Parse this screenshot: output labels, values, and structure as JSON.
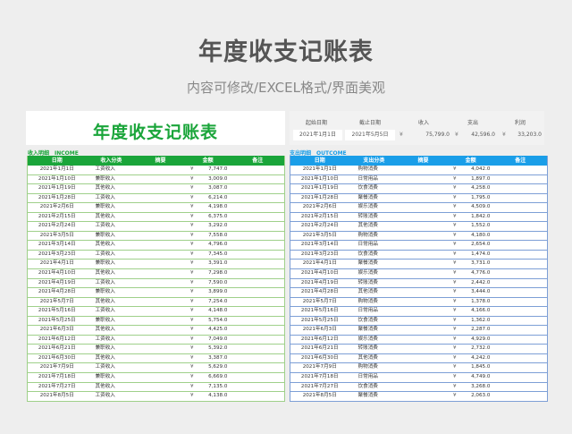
{
  "poster": {
    "title": "年度收支记账表",
    "subtitle": "内容可修改/EXCEL格式/界面美观"
  },
  "sheet": {
    "title": "年度收支记账表",
    "summary": {
      "labels": [
        "起始日期",
        "截止日期",
        "收入",
        "支出",
        "利润"
      ],
      "start_date": "2021年1月1日",
      "end_date": "2021年5月5日",
      "currency": "¥",
      "income": "75,799.0",
      "expense": "42,596.0",
      "profit": "33,203.0"
    },
    "income": {
      "section_label": "收入明细　INCOME",
      "accent": "#1aa53a",
      "columns": [
        "日期",
        "收入分类",
        "摘要",
        "金额",
        "备注"
      ],
      "rows": [
        {
          "date": "2021年1月1日",
          "category": "工资收入",
          "yen": "¥",
          "amount": "7,747.0"
        },
        {
          "date": "2021年1月10日",
          "category": "兼职收入",
          "yen": "¥",
          "amount": "3,009.0"
        },
        {
          "date": "2021年1月19日",
          "category": "其他收入",
          "yen": "¥",
          "amount": "3,087.0"
        },
        {
          "date": "2021年1月28日",
          "category": "工资收入",
          "yen": "¥",
          "amount": "6,214.0"
        },
        {
          "date": "2021年2月6日",
          "category": "兼职收入",
          "yen": "¥",
          "amount": "4,198.0"
        },
        {
          "date": "2021年2月15日",
          "category": "其他收入",
          "yen": "¥",
          "amount": "6,375.0"
        },
        {
          "date": "2021年2月24日",
          "category": "工资收入",
          "yen": "¥",
          "amount": "3,292.0"
        },
        {
          "date": "2021年3月5日",
          "category": "兼职收入",
          "yen": "¥",
          "amount": "7,558.0"
        },
        {
          "date": "2021年3月14日",
          "category": "其他收入",
          "yen": "¥",
          "amount": "4,796.0"
        },
        {
          "date": "2021年3月23日",
          "category": "工资收入",
          "yen": "¥",
          "amount": "7,345.0"
        },
        {
          "date": "2021年4月1日",
          "category": "兼职收入",
          "yen": "¥",
          "amount": "3,391.0"
        },
        {
          "date": "2021年4月10日",
          "category": "其他收入",
          "yen": "¥",
          "amount": "7,298.0"
        },
        {
          "date": "2021年4月19日",
          "category": "工资收入",
          "yen": "¥",
          "amount": "7,590.0"
        },
        {
          "date": "2021年4月28日",
          "category": "兼职收入",
          "yen": "¥",
          "amount": "3,899.0"
        },
        {
          "date": "2021年5月7日",
          "category": "其他收入",
          "yen": "¥",
          "amount": "7,254.0"
        },
        {
          "date": "2021年5月16日",
          "category": "工资收入",
          "yen": "¥",
          "amount": "4,148.0"
        },
        {
          "date": "2021年5月25日",
          "category": "兼职收入",
          "yen": "¥",
          "amount": "5,754.0"
        },
        {
          "date": "2021年6月3日",
          "category": "其他收入",
          "yen": "¥",
          "amount": "4,425.0"
        },
        {
          "date": "2021年6月12日",
          "category": "工资收入",
          "yen": "¥",
          "amount": "7,049.0"
        },
        {
          "date": "2021年6月21日",
          "category": "兼职收入",
          "yen": "¥",
          "amount": "5,392.0"
        },
        {
          "date": "2021年6月30日",
          "category": "其他收入",
          "yen": "¥",
          "amount": "3,387.0"
        },
        {
          "date": "2021年7月9日",
          "category": "工资收入",
          "yen": "¥",
          "amount": "5,629.0"
        },
        {
          "date": "2021年7月18日",
          "category": "兼职收入",
          "yen": "¥",
          "amount": "6,669.0"
        },
        {
          "date": "2021年7月27日",
          "category": "其他收入",
          "yen": "¥",
          "amount": "7,135.0"
        },
        {
          "date": "2021年8月5日",
          "category": "工资收入",
          "yen": "¥",
          "amount": "4,138.0"
        }
      ]
    },
    "expense": {
      "section_label": "支出明细　OUTCOME",
      "accent": "#1a9ee8",
      "columns": [
        "日期",
        "支出分类",
        "摘要",
        "金额",
        "备注"
      ],
      "rows": [
        {
          "date": "2021年1月1日",
          "category": "购物消费",
          "yen": "¥",
          "amount": "4,042.0"
        },
        {
          "date": "2021年1月10日",
          "category": "日常用品",
          "yen": "¥",
          "amount": "1,897.0"
        },
        {
          "date": "2021年1月19日",
          "category": "饮食消费",
          "yen": "¥",
          "amount": "4,258.0"
        },
        {
          "date": "2021年1月28日",
          "category": "聚餐消费",
          "yen": "¥",
          "amount": "1,795.0"
        },
        {
          "date": "2021年2月6日",
          "category": "娱乐消费",
          "yen": "¥",
          "amount": "4,509.0"
        },
        {
          "date": "2021年2月15日",
          "category": "转账消费",
          "yen": "¥",
          "amount": "1,842.0"
        },
        {
          "date": "2021年2月24日",
          "category": "其他消费",
          "yen": "¥",
          "amount": "1,552.0"
        },
        {
          "date": "2021年3月5日",
          "category": "购物消费",
          "yen": "¥",
          "amount": "4,180.0"
        },
        {
          "date": "2021年3月14日",
          "category": "日常用品",
          "yen": "¥",
          "amount": "2,654.0"
        },
        {
          "date": "2021年3月23日",
          "category": "饮食消费",
          "yen": "¥",
          "amount": "1,474.0"
        },
        {
          "date": "2021年4月1日",
          "category": "聚餐消费",
          "yen": "¥",
          "amount": "3,731.0"
        },
        {
          "date": "2021年4月10日",
          "category": "娱乐消费",
          "yen": "¥",
          "amount": "4,776.0"
        },
        {
          "date": "2021年4月19日",
          "category": "转账消费",
          "yen": "¥",
          "amount": "2,442.0"
        },
        {
          "date": "2021年4月28日",
          "category": "其他消费",
          "yen": "¥",
          "amount": "3,444.0"
        },
        {
          "date": "2021年5月7日",
          "category": "购物消费",
          "yen": "¥",
          "amount": "1,378.0"
        },
        {
          "date": "2021年5月16日",
          "category": "日常用品",
          "yen": "¥",
          "amount": "4,166.0"
        },
        {
          "date": "2021年5月25日",
          "category": "饮食消费",
          "yen": "¥",
          "amount": "1,362.0"
        },
        {
          "date": "2021年6月3日",
          "category": "聚餐消费",
          "yen": "¥",
          "amount": "2,287.0"
        },
        {
          "date": "2021年6月12日",
          "category": "娱乐消费",
          "yen": "¥",
          "amount": "4,929.0"
        },
        {
          "date": "2021年6月21日",
          "category": "转账消费",
          "yen": "¥",
          "amount": "2,732.0"
        },
        {
          "date": "2021年6月30日",
          "category": "其他消费",
          "yen": "¥",
          "amount": "4,242.0"
        },
        {
          "date": "2021年7月9日",
          "category": "购物消费",
          "yen": "¥",
          "amount": "1,845.0"
        },
        {
          "date": "2021年7月18日",
          "category": "日常用品",
          "yen": "¥",
          "amount": "4,749.0"
        },
        {
          "date": "2021年7月27日",
          "category": "饮食消费",
          "yen": "¥",
          "amount": "3,268.0"
        },
        {
          "date": "2021年8月5日",
          "category": "聚餐消费",
          "yen": "¥",
          "amount": "2,063.0"
        }
      ]
    }
  }
}
